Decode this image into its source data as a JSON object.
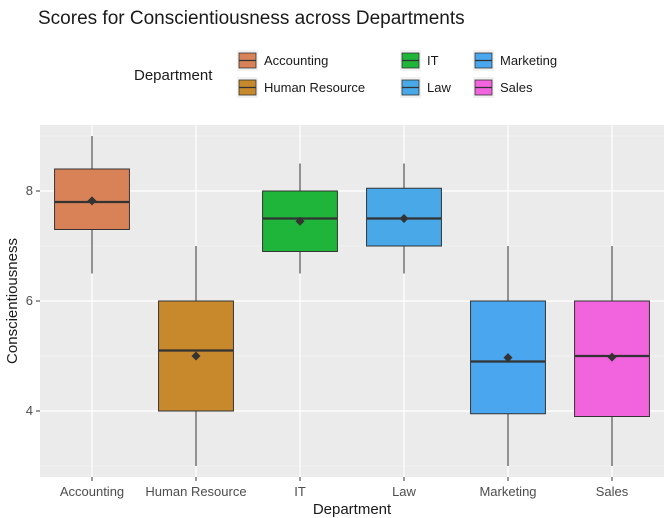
{
  "chart_data": {
    "type": "box",
    "title": "Scores for Conscientiousness across Departments",
    "xlabel": "Department",
    "ylabel": "Conscientiousness",
    "ylim": [
      2.8,
      9.2
    ],
    "yticks": [
      4,
      6,
      8
    ],
    "grid": true,
    "legend": {
      "title": "Department",
      "position": "top",
      "columns": [
        [
          "Accounting",
          "Human Resource"
        ],
        [
          "IT",
          "Law"
        ],
        [
          "Marketing",
          "Sales"
        ]
      ]
    },
    "categories": [
      "Accounting",
      "Human Resource",
      "IT",
      "Law",
      "Marketing",
      "Sales"
    ],
    "series": [
      {
        "name": "Accounting",
        "color": "#D98258",
        "whisker_low": 6.5,
        "q1": 7.3,
        "median": 7.8,
        "q3": 8.4,
        "whisker_high": 9.0,
        "mean": 7.82
      },
      {
        "name": "Human Resource",
        "color": "#C8892C",
        "whisker_low": 3.0,
        "q1": 4.0,
        "median": 5.1,
        "q3": 6.0,
        "whisker_high": 7.0,
        "mean": 5.0
      },
      {
        "name": "IT",
        "color": "#1EB53A",
        "whisker_low": 6.5,
        "q1": 6.9,
        "median": 7.5,
        "q3": 8.0,
        "whisker_high": 8.5,
        "mean": 7.45
      },
      {
        "name": "Law",
        "color": "#48A8E8",
        "whisker_low": 6.5,
        "q1": 7.0,
        "median": 7.5,
        "q3": 8.05,
        "whisker_high": 8.5,
        "mean": 7.5
      },
      {
        "name": "Marketing",
        "color": "#4AA6EE",
        "whisker_low": 3.0,
        "q1": 3.95,
        "median": 4.9,
        "q3": 6.0,
        "whisker_high": 7.0,
        "mean": 4.97
      },
      {
        "name": "Sales",
        "color": "#F263DE",
        "whisker_low": 3.0,
        "q1": 3.9,
        "median": 5.0,
        "q3": 6.0,
        "whisker_high": 7.0,
        "mean": 4.98
      }
    ]
  }
}
